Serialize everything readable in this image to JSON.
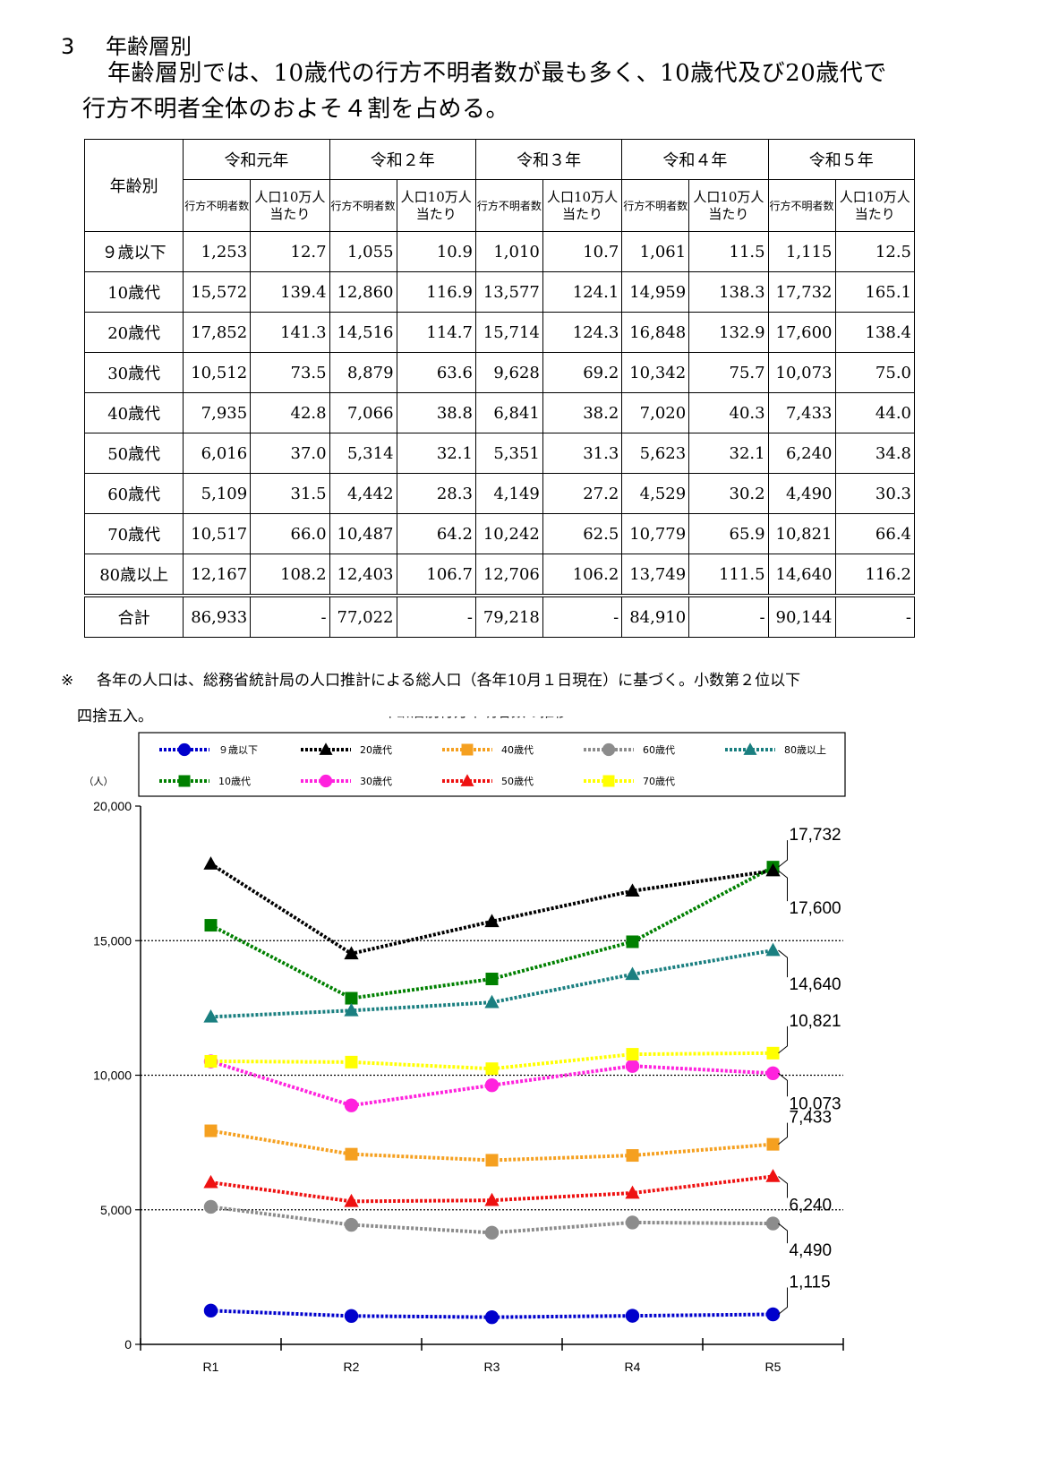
{
  "section": {
    "number": "3",
    "title": "年齢層別"
  },
  "intro": {
    "line1": "年齢層別では、10歳代の行方不明者数が最も多く、10歳代及び20歳代で",
    "line2": "行方不明者全体のおよそ４割を占める。"
  },
  "table": {
    "corner": "年齢別",
    "years": [
      "令和元年",
      "令和２年",
      "令和３年",
      "令和４年",
      "令和５年"
    ],
    "sub_count": "行方不明者数",
    "sub_rate_1": "人口10万人",
    "sub_rate_2": "当たり",
    "rows": [
      {
        "label": "９歳以下",
        "cells": [
          "1,253",
          "12.7",
          "1,055",
          "10.9",
          "1,010",
          "10.7",
          "1,061",
          "11.5",
          "1,115",
          "12.5"
        ]
      },
      {
        "label": "10歳代",
        "cells": [
          "15,572",
          "139.4",
          "12,860",
          "116.9",
          "13,577",
          "124.1",
          "14,959",
          "138.3",
          "17,732",
          "165.1"
        ]
      },
      {
        "label": "20歳代",
        "cells": [
          "17,852",
          "141.3",
          "14,516",
          "114.7",
          "15,714",
          "124.3",
          "16,848",
          "132.9",
          "17,600",
          "138.4"
        ]
      },
      {
        "label": "30歳代",
        "cells": [
          "10,512",
          "73.5",
          "8,879",
          "63.6",
          "9,628",
          "69.2",
          "10,342",
          "75.7",
          "10,073",
          "75.0"
        ]
      },
      {
        "label": "40歳代",
        "cells": [
          "7,935",
          "42.8",
          "7,066",
          "38.8",
          "6,841",
          "38.2",
          "7,020",
          "40.3",
          "7,433",
          "44.0"
        ]
      },
      {
        "label": "50歳代",
        "cells": [
          "6,016",
          "37.0",
          "5,314",
          "32.1",
          "5,351",
          "31.3",
          "5,623",
          "32.1",
          "6,240",
          "34.8"
        ]
      },
      {
        "label": "60歳代",
        "cells": [
          "5,109",
          "31.5",
          "4,442",
          "28.3",
          "4,149",
          "27.2",
          "4,529",
          "30.2",
          "4,490",
          "30.3"
        ]
      },
      {
        "label": "70歳代",
        "cells": [
          "10,517",
          "66.0",
          "10,487",
          "64.2",
          "10,242",
          "62.5",
          "10,779",
          "65.9",
          "10,821",
          "66.4"
        ]
      },
      {
        "label": "80歳以上",
        "cells": [
          "12,167",
          "108.2",
          "12,403",
          "106.7",
          "12,706",
          "106.2",
          "13,749",
          "111.5",
          "14,640",
          "116.2"
        ]
      }
    ],
    "total": {
      "label": "合計",
      "cells": [
        "86,933",
        "-",
        "77,022",
        "-",
        "79,218",
        "-",
        "84,910",
        "-",
        "90,144",
        "-"
      ]
    }
  },
  "note": {
    "mark": "※",
    "line1": "各年の人口は、総務省統計局の人口推計による総人口（各年10月１日現在）に基づく。小数第２位以下",
    "line2": "四捨五入。"
  },
  "chart_data": {
    "type": "line",
    "title": "年齢層別行方不明者数の推移",
    "ylabel": "（人）",
    "categories": [
      "R1",
      "R2",
      "R3",
      "R4",
      "R5"
    ],
    "ylim": [
      0,
      20000
    ],
    "yticks": [
      0,
      5000,
      10000,
      15000,
      20000
    ],
    "ytick_labels": [
      "0",
      "5,000",
      "10,000",
      "15,000",
      "20,000"
    ],
    "grid": "dotted at 5,000 / 10,000 / 15,000",
    "legend_position": "top",
    "series": [
      {
        "name": "９歳以下",
        "color": "#0000cc",
        "marker": "circle",
        "values": [
          1253,
          1055,
          1010,
          1061,
          1115
        ]
      },
      {
        "name": "10歳代",
        "color": "#008000",
        "marker": "square",
        "values": [
          15572,
          12860,
          13577,
          14959,
          17732
        ]
      },
      {
        "name": "20歳代",
        "color": "#000000",
        "marker": "triangle",
        "values": [
          17852,
          14516,
          15714,
          16848,
          17600
        ]
      },
      {
        "name": "30歳代",
        "color": "#ff22dd",
        "marker": "circle",
        "values": [
          10512,
          8879,
          9628,
          10342,
          10073
        ]
      },
      {
        "name": "40歳代",
        "color": "#f5a020",
        "marker": "square",
        "values": [
          7935,
          7066,
          6841,
          7020,
          7433
        ]
      },
      {
        "name": "50歳代",
        "color": "#ee1111",
        "marker": "triangle",
        "values": [
          6016,
          5314,
          5351,
          5623,
          6240
        ]
      },
      {
        "name": "60歳代",
        "color": "#8c8c8c",
        "marker": "circle",
        "values": [
          5109,
          4442,
          4149,
          4529,
          4490
        ]
      },
      {
        "name": "70歳代",
        "color": "#ffff00",
        "marker": "square",
        "values": [
          10517,
          10487,
          10242,
          10779,
          10821
        ]
      },
      {
        "name": "80歳以上",
        "color": "#1a7f80",
        "marker": "triangle",
        "values": [
          12167,
          12403,
          12706,
          13749,
          14640
        ]
      }
    ],
    "annotations": [
      {
        "series": "10歳代",
        "text": "17,732"
      },
      {
        "series": "20歳代",
        "text": "17,600"
      },
      {
        "series": "80歳以上",
        "text": "14,640"
      },
      {
        "series": "70歳代",
        "text": "10,821"
      },
      {
        "series": "30歳代",
        "text": "10,073"
      },
      {
        "series": "40歳代",
        "text": "7,433"
      },
      {
        "series": "50歳代",
        "text": "6,240"
      },
      {
        "series": "60歳代",
        "text": "4,490"
      },
      {
        "series": "９歳以下",
        "text": "1,115"
      }
    ]
  }
}
